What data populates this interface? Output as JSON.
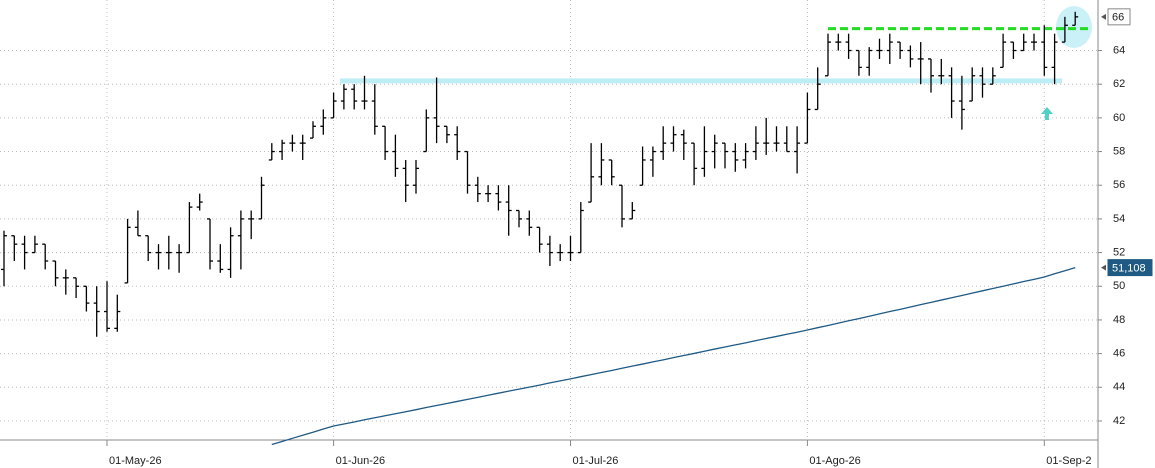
{
  "chart_data": {
    "type": "ohlc",
    "categories": [
      null,
      null,
      null,
      null,
      null,
      null,
      null,
      null,
      null,
      null,
      "01-May-26",
      null,
      null,
      null,
      null,
      null,
      null,
      null,
      null,
      null,
      null,
      null,
      null,
      null,
      null,
      null,
      null,
      null,
      null,
      null,
      null,
      null,
      "01-Jun-26",
      null,
      null,
      null,
      null,
      null,
      null,
      null,
      null,
      null,
      null,
      null,
      null,
      null,
      null,
      null,
      null,
      null,
      null,
      null,
      null,
      null,
      null,
      "01-Jul-26",
      null,
      null,
      null,
      null,
      null,
      null,
      null,
      null,
      null,
      null,
      null,
      null,
      null,
      null,
      null,
      null,
      null,
      null,
      null,
      null,
      null,
      null,
      "01-Ago-26",
      null,
      null,
      null,
      null,
      null,
      null,
      null,
      null,
      null,
      null,
      null,
      null,
      null,
      null,
      null,
      null,
      null,
      null,
      null,
      null,
      null,
      null,
      "01-Sep-2",
      null,
      null,
      null
    ],
    "open": [
      51,
      53,
      52.5,
      52,
      52.5,
      51.5,
      50.5,
      50.5,
      50,
      49,
      48.5,
      47.5,
      50.2,
      53.5,
      53,
      52,
      52,
      52,
      52,
      54.7,
      54,
      51.5,
      51,
      53,
      54,
      54,
      57.5,
      58,
      58.5,
      58.5,
      58.8,
      59.5,
      60,
      61,
      61.7,
      61,
      61,
      59.5,
      58,
      57,
      56,
      58,
      60,
      59.5,
      59,
      58,
      56,
      55.5,
      55.5,
      55,
      54.5,
      54,
      53.5,
      52.5,
      52,
      52,
      52,
      55,
      56.5,
      57.5,
      56,
      54,
      56,
      57.5,
      58,
      58.5,
      59,
      58.5,
      57,
      58,
      58.5,
      58,
      57.5,
      58,
      58.5,
      58.5,
      58.5,
      58,
      58.5,
      60.5,
      62.5,
      64.5,
      64.5,
      64,
      63,
      64,
      64,
      64.5,
      64,
      63.5,
      63.5,
      62.5,
      62.5,
      61,
      61,
      62.5,
      62,
      63,
      64.5,
      64,
      64.5,
      64.5,
      63,
      64.5,
      65.5
    ],
    "high": [
      53.3,
      53,
      53,
      53,
      52.5,
      51.5,
      51,
      50.5,
      50,
      50,
      50.3,
      49.5,
      54,
      54.5,
      53,
      52.5,
      53,
      52.5,
      55,
      55.5,
      54,
      52.5,
      53.5,
      54.5,
      54.5,
      56.5,
      58.5,
      58.7,
      59,
      59,
      59.8,
      60.5,
      61.5,
      62,
      62,
      62.5,
      62,
      59.5,
      59,
      57.5,
      57.5,
      60.5,
      62.4,
      59.5,
      59.5,
      58,
      56.5,
      56,
      56,
      56,
      54.5,
      54.5,
      53.5,
      53,
      52.5,
      53,
      55,
      58.5,
      58.5,
      57.5,
      56,
      55,
      58.3,
      58.3,
      59.5,
      59.5,
      59.3,
      58.5,
      59.5,
      59,
      58.5,
      58.5,
      58.5,
      59.5,
      60,
      59.5,
      59.5,
      59.5,
      61.5,
      63,
      65,
      65,
      65,
      64,
      64.2,
      64.7,
      65,
      64.5,
      64.3,
      64.5,
      63.5,
      63.5,
      63,
      62.5,
      63,
      63,
      63,
      65,
      64.5,
      65,
      65,
      65.5,
      65,
      66,
      66.3
    ],
    "low": [
      50,
      51.5,
      51,
      52,
      51,
      50,
      49.5,
      49.3,
      48.5,
      47,
      47.3,
      47.3,
      50.2,
      53,
      51.5,
      51,
      51,
      50.8,
      52,
      54.5,
      51,
      50.8,
      50.5,
      51,
      52.8,
      54,
      57.5,
      57.5,
      58,
      57.5,
      58.8,
      59,
      60,
      60.5,
      60.5,
      60.5,
      59,
      57.5,
      56.5,
      55,
      55.5,
      58,
      58.5,
      58.5,
      57.5,
      55.5,
      55,
      55,
      54.5,
      53,
      53.5,
      53,
      52,
      51.2,
      51.5,
      51.5,
      52,
      55,
      56,
      56,
      53.5,
      54,
      56,
      56.5,
      57.5,
      58,
      57.5,
      56,
      56.5,
      57,
      57,
      56.8,
      57,
      57.5,
      57.8,
      58,
      58,
      56.7,
      58.5,
      60.5,
      62.5,
      64,
      63.5,
      62.5,
      62.5,
      63.5,
      63.2,
      63.5,
      63,
      62,
      61.5,
      62,
      60,
      59.3,
      61,
      61.2,
      62,
      63,
      63.5,
      64,
      64,
      62.5,
      62,
      64.5,
      65.5
    ],
    "close": [
      53,
      52.5,
      52,
      52.5,
      51.5,
      50.5,
      50.5,
      50,
      49,
      48.5,
      47.5,
      48.5,
      53.5,
      53,
      52,
      52,
      52,
      52,
      54.7,
      55,
      51.5,
      51,
      53,
      54,
      54,
      56,
      58,
      58.5,
      58.5,
      58.5,
      59.5,
      60,
      61,
      61.7,
      61,
      61,
      59.5,
      58,
      57,
      56,
      57,
      60,
      59.5,
      59,
      58,
      56,
      55.5,
      55.5,
      55,
      54.5,
      54,
      53.5,
      52.5,
      52,
      52,
      52,
      54.5,
      56.5,
      57.5,
      56.5,
      54,
      54.5,
      57.5,
      58,
      58.5,
      59,
      58.5,
      57,
      58,
      58.5,
      58,
      57.5,
      58,
      58.5,
      58.5,
      58.5,
      58,
      58.5,
      60.5,
      62,
      64.5,
      64.5,
      64,
      63,
      64,
      64,
      64.5,
      64,
      63.5,
      63.5,
      62.5,
      62.5,
      61,
      60.5,
      62.5,
      62,
      62.5,
      64.5,
      64,
      64.5,
      64.5,
      63,
      64.5,
      65.5,
      66
    ],
    "color": "#000000",
    "ma": {
      "color": "#1f5a85",
      "values": [
        null,
        null,
        null,
        null,
        null,
        null,
        null,
        null,
        null,
        null,
        null,
        null,
        null,
        null,
        null,
        null,
        null,
        null,
        null,
        null,
        null,
        null,
        null,
        null,
        null,
        null,
        40.6,
        40.78,
        40.97,
        41.15,
        41.33,
        41.52,
        41.7,
        41.82,
        41.94,
        42.07,
        42.19,
        42.31,
        42.43,
        42.55,
        42.67,
        42.8,
        42.92,
        43.04,
        43.16,
        43.28,
        43.4,
        43.53,
        43.65,
        43.77,
        43.89,
        44.01,
        44.13,
        44.26,
        44.38,
        44.5,
        44.63,
        44.75,
        44.88,
        45.0,
        45.13,
        45.26,
        45.38,
        45.51,
        45.63,
        45.76,
        45.89,
        46.01,
        46.14,
        46.27,
        46.39,
        46.52,
        46.64,
        46.77,
        46.9,
        47.02,
        47.15,
        47.27,
        47.4,
        47.54,
        47.67,
        47.81,
        47.95,
        48.08,
        48.22,
        48.36,
        48.5,
        48.63,
        48.77,
        48.91,
        49.04,
        49.18,
        49.32,
        49.45,
        49.59,
        49.73,
        49.87,
        50.0,
        50.14,
        50.28,
        50.41,
        50.55,
        50.74,
        50.92,
        51.108
      ]
    },
    "levels": [
      {
        "value": 62.2,
        "color": "#bdeef5",
        "style": "band"
      },
      {
        "value": 65.3,
        "color": "#22dd22",
        "style": "dashed"
      }
    ],
    "last_values": [
      {
        "value": 66,
        "label": "66",
        "color": "#ffffff"
      },
      {
        "value": 51.108,
        "label": "51,108",
        "color": "#1f5a85"
      }
    ],
    "ylim": [
      40.87,
      67.0
    ],
    "yticks": [
      42,
      44,
      46,
      48,
      50,
      52,
      54,
      56,
      58,
      60,
      62,
      64
    ],
    "grid": true
  }
}
